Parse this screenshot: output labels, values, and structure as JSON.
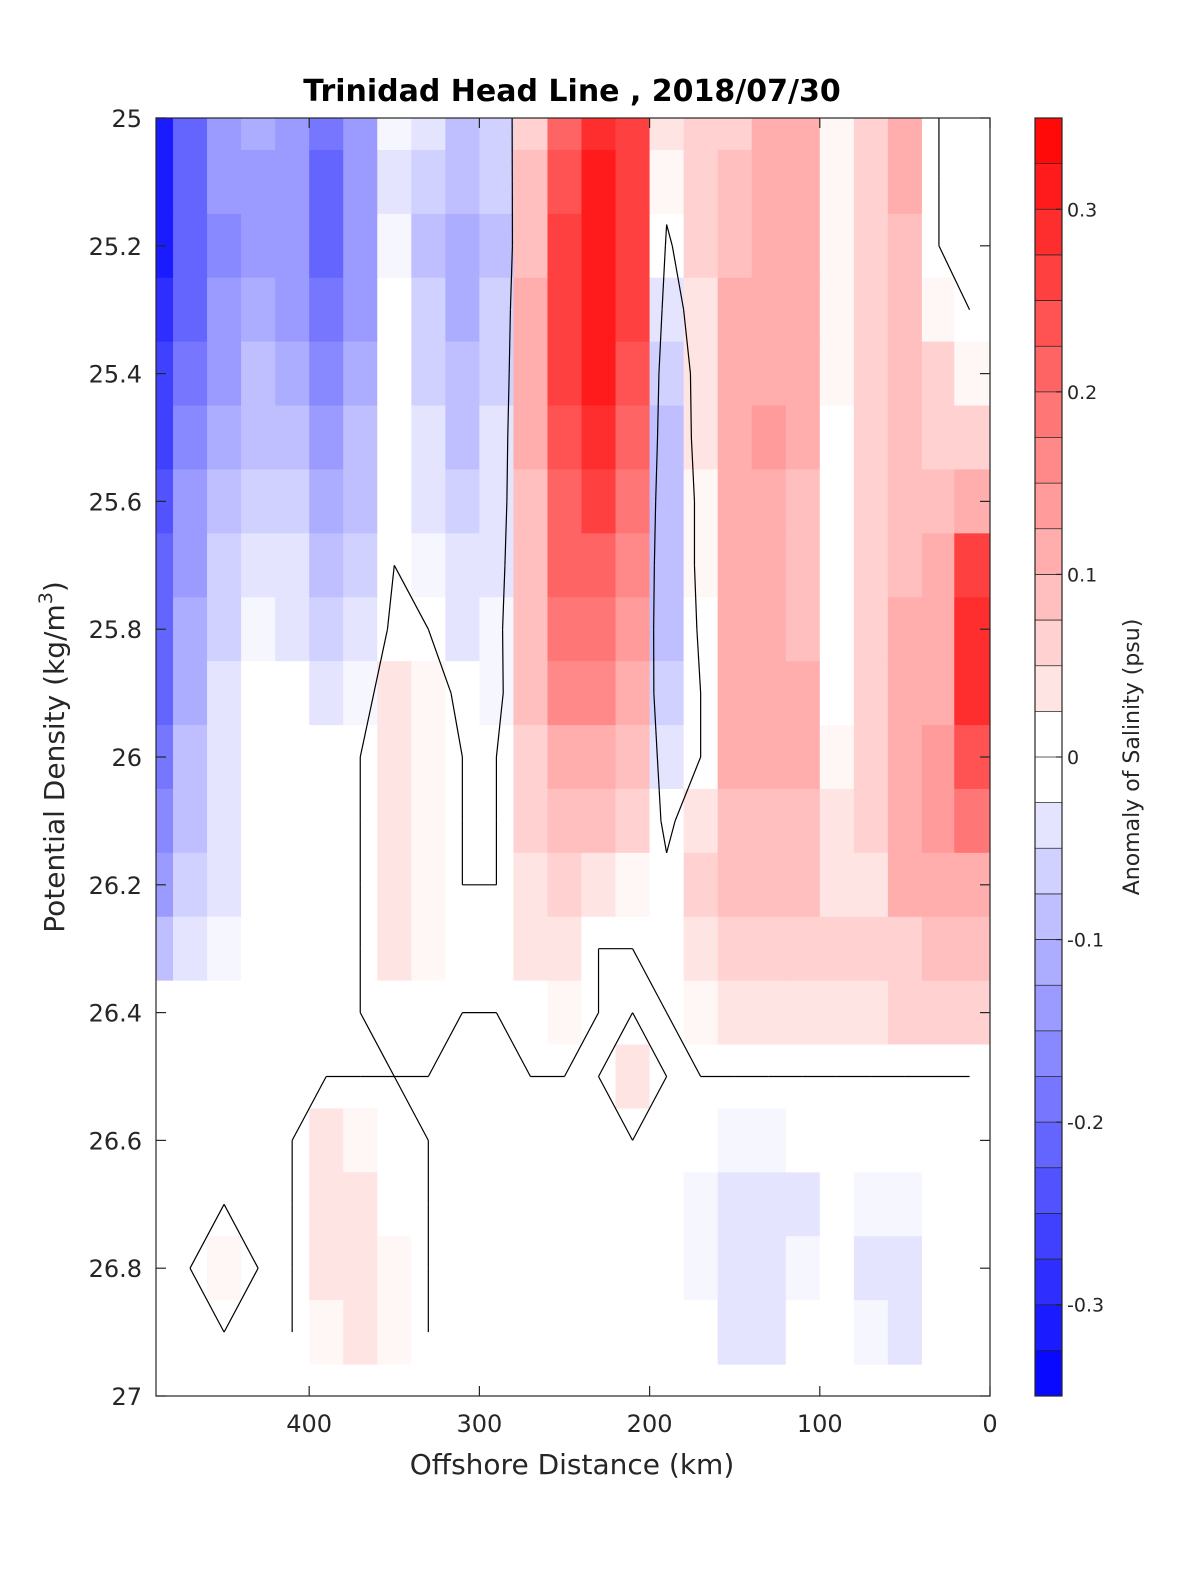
{
  "chart_data": {
    "type": "heatmap",
    "title": "Trinidad Head Line , 2018/07/30",
    "xlabel": "Offshore Distance (km)",
    "ylabel_main": "Potential Density (kg/m",
    "ylabel_sup": "3",
    "ylabel_close": ")",
    "colorbar_label": "Anomaly of Salinity (psu)",
    "xlim": [
      490,
      0
    ],
    "ylim": [
      25,
      27
    ],
    "x_reversed": true,
    "y_reversed": true,
    "x_ticks": [
      400,
      300,
      200,
      100,
      0
    ],
    "y_ticks": [
      "25",
      "25.2",
      "25.4",
      "25.6",
      "25.8",
      "26",
      "26.2",
      "26.4",
      "26.6",
      "26.8",
      "27"
    ],
    "colorbar_range": [
      -0.35,
      0.35
    ],
    "colorbar_ticks": [
      "0.3",
      "0.2",
      "0.1",
      "0",
      "-0.1",
      "-0.2",
      "-0.3"
    ],
    "colorbar_levels": 28,
    "colormap": [
      "#0000ff",
      "#ffffff",
      "#ff0000"
    ],
    "grid": false,
    "contour_level": 0,
    "x": [
      490,
      470,
      450,
      430,
      410,
      390,
      370,
      350,
      330,
      310,
      290,
      270,
      250,
      230,
      210,
      190,
      170,
      150,
      130,
      110,
      90,
      70,
      50,
      30,
      12
    ],
    "y": [
      25.0,
      25.1,
      25.2,
      25.3,
      25.4,
      25.5,
      25.6,
      25.7,
      25.8,
      25.9,
      26.0,
      26.1,
      26.2,
      26.3,
      26.4,
      26.5,
      26.6,
      26.7,
      26.8,
      26.9
    ],
    "z": [
      [
        -0.3,
        -0.2,
        -0.14,
        -0.12,
        -0.14,
        -0.18,
        -0.14,
        -0.02,
        -0.05,
        -0.08,
        -0.06,
        0.07,
        0.22,
        0.29,
        0.26,
        0.04,
        0.05,
        0.07,
        0.1,
        0.1,
        0.02,
        0.06,
        0.1,
        0.0,
        0.0
      ],
      [
        -0.31,
        -0.21,
        -0.15,
        -0.13,
        -0.15,
        -0.2,
        -0.15,
        -0.03,
        -0.07,
        -0.1,
        -0.07,
        0.08,
        0.24,
        0.3,
        0.27,
        0.02,
        0.05,
        0.08,
        0.11,
        0.1,
        0.02,
        0.06,
        0.1,
        0.0,
        0.0
      ],
      [
        -0.31,
        -0.22,
        -0.16,
        -0.13,
        -0.15,
        -0.2,
        -0.15,
        -0.02,
        -0.08,
        -0.12,
        -0.08,
        0.09,
        0.25,
        0.31,
        0.27,
        -0.01,
        0.05,
        0.09,
        0.12,
        0.1,
        0.02,
        0.06,
        0.09,
        0.0,
        0.0
      ],
      [
        -0.29,
        -0.21,
        -0.15,
        -0.12,
        -0.13,
        -0.19,
        -0.14,
        -0.01,
        -0.07,
        -0.11,
        -0.07,
        0.1,
        0.26,
        0.31,
        0.26,
        -0.04,
        0.04,
        0.1,
        0.12,
        0.1,
        0.02,
        0.06,
        0.08,
        0.02,
        0.0
      ],
      [
        -0.27,
        -0.19,
        -0.13,
        -0.1,
        -0.11,
        -0.17,
        -0.12,
        -0.01,
        -0.06,
        -0.09,
        -0.06,
        0.1,
        0.25,
        0.3,
        0.24,
        -0.07,
        0.03,
        0.1,
        0.12,
        0.1,
        0.02,
        0.06,
        0.09,
        0.05,
        0.02
      ],
      [
        -0.25,
        -0.17,
        -0.11,
        -0.08,
        -0.09,
        -0.14,
        -0.1,
        -0.01,
        -0.05,
        -0.08,
        -0.05,
        0.1,
        0.24,
        0.28,
        0.22,
        -0.08,
        0.03,
        0.11,
        0.13,
        0.1,
        0.01,
        0.05,
        0.09,
        0.07,
        0.05
      ],
      [
        -0.23,
        -0.15,
        -0.09,
        -0.06,
        -0.07,
        -0.11,
        -0.08,
        0.0,
        -0.04,
        -0.06,
        -0.04,
        0.09,
        0.22,
        0.25,
        0.19,
        -0.09,
        0.02,
        0.11,
        0.12,
        0.09,
        0.01,
        0.05,
        0.09,
        0.09,
        0.12
      ],
      [
        -0.22,
        -0.13,
        -0.07,
        -0.04,
        -0.05,
        -0.09,
        -0.06,
        0.0,
        -0.02,
        -0.05,
        -0.03,
        0.09,
        0.2,
        0.22,
        0.16,
        -0.09,
        0.02,
        0.11,
        0.12,
        0.09,
        0.01,
        0.05,
        0.09,
        0.1,
        0.27
      ],
      [
        -0.21,
        -0.12,
        -0.06,
        -0.02,
        -0.03,
        -0.07,
        -0.04,
        0.01,
        0.0,
        -0.03,
        -0.02,
        0.09,
        0.18,
        0.19,
        0.13,
        -0.08,
        0.01,
        0.11,
        0.12,
        0.09,
        0.01,
        0.06,
        0.1,
        0.11,
        0.29
      ],
      [
        -0.2,
        -0.11,
        -0.05,
        -0.01,
        0.0,
        -0.04,
        -0.02,
        0.03,
        0.02,
        -0.01,
        -0.02,
        0.08,
        0.15,
        0.15,
        0.1,
        -0.06,
        0.0,
        0.1,
        0.11,
        0.1,
        0.01,
        0.06,
        0.11,
        0.12,
        0.28
      ],
      [
        -0.18,
        -0.1,
        -0.04,
        0.0,
        0.0,
        0.0,
        0.0,
        0.03,
        0.02,
        0.0,
        0.0,
        0.07,
        0.12,
        0.11,
        0.08,
        -0.03,
        0.0,
        0.1,
        0.1,
        0.1,
        0.02,
        0.06,
        0.12,
        0.13,
        0.24
      ],
      [
        -0.16,
        -0.09,
        -0.03,
        0.0,
        0.0,
        0.0,
        0.0,
        0.04,
        0.02,
        0.0,
        0.0,
        0.05,
        0.08,
        0.08,
        0.05,
        -0.01,
        0.03,
        0.09,
        0.09,
        0.09,
        0.03,
        0.06,
        0.12,
        0.13,
        0.18
      ],
      [
        -0.13,
        -0.07,
        -0.03,
        0.0,
        0.0,
        0.0,
        0.0,
        0.03,
        0.02,
        0.0,
        0.0,
        0.03,
        0.05,
        0.03,
        0.02,
        0.01,
        0.05,
        0.08,
        0.08,
        0.08,
        0.03,
        0.03,
        0.1,
        0.12,
        0.12
      ],
      [
        -0.09,
        -0.05,
        -0.02,
        0.0,
        0.0,
        0.0,
        0.0,
        0.03,
        0.02,
        0.01,
        0.01,
        0.03,
        0.04,
        0.0,
        0.0,
        0.01,
        0.04,
        0.06,
        0.06,
        0.06,
        0.05,
        0.05,
        0.07,
        0.09,
        0.09
      ],
      [
        0.0,
        0.0,
        0.0,
        0.0,
        0.0,
        0.0,
        0.0,
        0.01,
        0.01,
        0.0,
        0.0,
        0.01,
        0.02,
        0.0,
        0.0,
        0.0,
        0.02,
        0.04,
        0.04,
        0.04,
        0.04,
        0.04,
        0.05,
        0.06,
        0.06
      ],
      [
        0.0,
        0.0,
        0.0,
        0.0,
        0.0,
        0.0,
        0.0,
        0.0,
        0.0,
        0.0,
        0.0,
        0.0,
        0.0,
        0.0,
        0.03,
        0.0,
        0.0,
        0.0,
        0.0,
        0.0,
        0.0,
        0.0,
        0.0,
        0.0,
        0.0
      ],
      [
        0.0,
        0.0,
        0.0,
        0.0,
        0.0,
        0.03,
        0.02,
        0.01,
        0.0,
        0.0,
        0.0,
        0.0,
        0.0,
        0.0,
        0.0,
        0.0,
        0.0,
        -0.02,
        -0.02,
        -0.01,
        0.0,
        0.0,
        0.0,
        0.0,
        0.0
      ],
      [
        0.0,
        0.0,
        0.0,
        0.0,
        0.0,
        0.03,
        0.03,
        0.01,
        0.0,
        0.0,
        0.0,
        0.0,
        0.0,
        0.0,
        0.0,
        0.0,
        -0.02,
        -0.04,
        -0.04,
        -0.03,
        0.0,
        -0.02,
        -0.02,
        0.0,
        0.0
      ],
      [
        0.0,
        0.0,
        0.02,
        0.0,
        0.0,
        0.03,
        0.04,
        0.02,
        0.0,
        0.0,
        0.0,
        0.0,
        0.0,
        0.0,
        0.0,
        0.0,
        -0.02,
        -0.05,
        -0.04,
        -0.02,
        0.0,
        -0.03,
        -0.03,
        0.0,
        0.0
      ],
      [
        0.0,
        0.0,
        0.0,
        0.0,
        0.0,
        0.02,
        0.03,
        0.02,
        0.0,
        0.0,
        0.0,
        0.0,
        0.0,
        0.0,
        0.0,
        0.0,
        -0.01,
        -0.04,
        -0.03,
        -0.01,
        0.0,
        -0.02,
        -0.03,
        0.0,
        0.0
      ]
    ]
  }
}
